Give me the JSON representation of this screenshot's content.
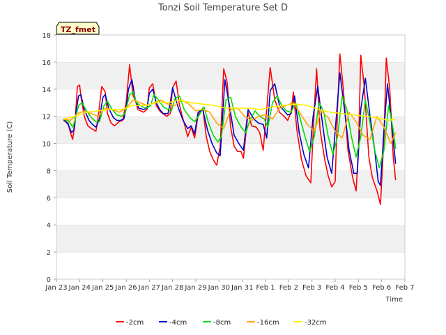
{
  "chart_data": {
    "type": "line",
    "title": "Tonzi Soil Temperature Set D",
    "xlabel": "Time",
    "ylabel": "Soil Temperature (C)",
    "badge": "TZ_fmet",
    "ylim": [
      0,
      18
    ],
    "yticks": [
      0,
      2,
      4,
      6,
      8,
      10,
      12,
      14,
      16,
      18
    ],
    "xlim": [
      0,
      15
    ],
    "xticks": [
      0,
      1,
      2,
      3,
      4,
      5,
      6,
      7,
      8,
      9,
      10,
      11,
      12,
      13,
      14,
      15
    ],
    "xtick_labels": [
      "Jan 23",
      "Jan 24",
      "Jan 25",
      "Jan 26",
      "Jan 27",
      "Jan 28",
      "Jan 29",
      "Jan 30",
      "Jan 31",
      "Feb 1",
      "Feb 2",
      "Feb 3",
      "Feb 4",
      "Feb 5",
      "Feb 6",
      "Feb 7"
    ],
    "grid": "horizontal bands",
    "legend_position": "bottom",
    "series": [
      {
        "name": "-2cm",
        "color": "#ff0000",
        "x": [
          0.3,
          0.5,
          0.6,
          0.7,
          0.8,
          0.9,
          1.0,
          1.05,
          1.2,
          1.35,
          1.5,
          1.7,
          1.8,
          1.95,
          2.1,
          2.2,
          2.35,
          2.5,
          2.7,
          2.85,
          3.0,
          3.15,
          3.3,
          3.4,
          3.5,
          3.75,
          3.9,
          4.0,
          4.15,
          4.3,
          4.4,
          4.5,
          4.75,
          4.9,
          5.0,
          5.15,
          5.3,
          5.4,
          5.5,
          5.65,
          5.8,
          5.95,
          6.1,
          6.3,
          6.45,
          6.6,
          6.75,
          6.9,
          7.05,
          7.2,
          7.35,
          7.5,
          7.65,
          7.8,
          7.95,
          8.05,
          8.25,
          8.4,
          8.6,
          8.75,
          8.9,
          9.05,
          9.2,
          9.4,
          9.6,
          9.8,
          9.95,
          10.1,
          10.2,
          10.35,
          10.55,
          10.75,
          10.95,
          11.1,
          11.2,
          11.35,
          11.55,
          11.7,
          11.85,
          12.0,
          12.1,
          12.2,
          12.35,
          12.55,
          12.75,
          12.9,
          13.0,
          13.1,
          13.25,
          13.45,
          13.6,
          13.8,
          13.95,
          14.1,
          14.2,
          14.35,
          14.5,
          14.6
        ],
        "values": [
          11.7,
          11.5,
          10.8,
          10.3,
          11.5,
          14.2,
          14.3,
          13.5,
          12.0,
          11.3,
          11.1,
          10.9,
          12.0,
          14.2,
          13.8,
          12.2,
          11.5,
          11.3,
          11.6,
          11.7,
          13.0,
          15.8,
          13.5,
          13.2,
          12.5,
          12.3,
          12.5,
          14.1,
          14.4,
          12.8,
          12.5,
          12.3,
          12.0,
          12.2,
          14.1,
          14.6,
          12.8,
          12.1,
          11.5,
          10.5,
          11.2,
          10.4,
          12.1,
          12.6,
          10.5,
          9.4,
          8.8,
          8.4,
          9.8,
          15.5,
          14.5,
          11.2,
          9.8,
          9.4,
          9.4,
          8.9,
          12.3,
          11.3,
          11.2,
          10.8,
          9.5,
          12.5,
          15.6,
          13.2,
          12.3,
          12.0,
          11.7,
          12.3,
          13.8,
          11.0,
          8.8,
          7.6,
          7.1,
          12.5,
          15.5,
          11.0,
          8.8,
          7.6,
          6.8,
          7.2,
          12.5,
          16.6,
          14.0,
          9.5,
          7.5,
          6.5,
          9.5,
          16.5,
          14.2,
          9.0,
          7.5,
          6.5,
          5.5,
          10.5,
          16.3,
          14.0,
          9.0,
          7.3
        ]
      },
      {
        "name": "-4cm",
        "color": "#0000cc",
        "x": [
          0.3,
          0.5,
          0.65,
          0.75,
          0.85,
          0.95,
          1.05,
          1.2,
          1.4,
          1.55,
          1.7,
          1.85,
          2.0,
          2.1,
          2.25,
          2.45,
          2.6,
          2.75,
          2.9,
          3.0,
          3.1,
          3.25,
          3.4,
          3.55,
          3.75,
          3.9,
          4.0,
          4.15,
          4.3,
          4.45,
          4.6,
          4.8,
          4.9,
          5.0,
          5.1,
          5.25,
          5.45,
          5.65,
          5.8,
          5.95,
          6.1,
          6.3,
          6.5,
          6.7,
          6.9,
          7.05,
          7.25,
          7.45,
          7.65,
          7.85,
          8.05,
          8.25,
          8.5,
          8.7,
          8.9,
          9.05,
          9.2,
          9.4,
          9.6,
          9.8,
          9.95,
          10.1,
          10.25,
          10.45,
          10.65,
          10.85,
          11.05,
          11.25,
          11.45,
          11.65,
          11.85,
          12.05,
          12.2,
          12.4,
          12.6,
          12.8,
          12.95,
          13.1,
          13.3,
          13.5,
          13.7,
          13.85,
          13.95,
          14.1,
          14.25,
          14.4,
          14.6
        ],
        "values": [
          11.8,
          11.4,
          10.8,
          11.0,
          12.4,
          13.5,
          13.6,
          12.5,
          11.7,
          11.4,
          11.2,
          11.8,
          13.4,
          13.6,
          12.6,
          11.9,
          11.7,
          11.7,
          11.8,
          12.6,
          14.0,
          14.7,
          13.2,
          12.6,
          12.5,
          12.6,
          13.7,
          14.0,
          13.0,
          12.5,
          12.2,
          12.2,
          13.0,
          14.1,
          13.5,
          12.6,
          11.7,
          11.1,
          11.3,
          10.7,
          12.3,
          12.5,
          11.0,
          10.0,
          9.3,
          9.1,
          14.7,
          12.8,
          10.6,
          10.0,
          9.5,
          12.5,
          11.8,
          11.5,
          11.4,
          10.4,
          13.9,
          14.4,
          12.8,
          12.4,
          12.1,
          12.2,
          13.5,
          10.8,
          9.2,
          8.2,
          12.0,
          14.2,
          11.5,
          9.0,
          7.8,
          12.0,
          15.2,
          12.5,
          9.5,
          7.8,
          7.8,
          12.5,
          14.8,
          12.0,
          9.5,
          7.2,
          6.9,
          11.0,
          14.4,
          12.0,
          8.5
        ]
      },
      {
        "name": "-8cm",
        "color": "#00dd00",
        "x": [
          0.3,
          0.55,
          0.7,
          0.8,
          0.95,
          1.1,
          1.3,
          1.5,
          1.7,
          1.85,
          2.05,
          2.2,
          2.4,
          2.6,
          2.8,
          2.95,
          3.15,
          3.3,
          3.45,
          3.7,
          3.9,
          4.05,
          4.2,
          4.4,
          4.6,
          4.8,
          4.95,
          5.1,
          5.3,
          5.5,
          5.75,
          5.95,
          6.15,
          6.35,
          6.55,
          6.75,
          6.95,
          7.1,
          7.3,
          7.5,
          7.7,
          7.95,
          8.15,
          8.35,
          8.55,
          8.75,
          8.95,
          9.1,
          9.3,
          9.5,
          9.7,
          9.9,
          10.1,
          10.3,
          10.5,
          10.7,
          10.9,
          11.1,
          11.3,
          11.5,
          11.7,
          11.9,
          12.1,
          12.3,
          12.5,
          12.7,
          12.9,
          13.1,
          13.3,
          13.5,
          13.7,
          13.9,
          14.1,
          14.3,
          14.5,
          14.6
        ],
        "values": [
          11.8,
          11.6,
          11.2,
          11.7,
          12.8,
          13.0,
          12.4,
          11.9,
          11.6,
          11.6,
          12.8,
          13.1,
          12.5,
          12.1,
          12.0,
          12.2,
          13.6,
          13.8,
          13.0,
          12.7,
          12.6,
          12.8,
          13.6,
          13.2,
          12.7,
          12.5,
          12.4,
          13.3,
          13.5,
          12.5,
          11.9,
          11.6,
          12.1,
          12.7,
          11.5,
          10.6,
          10.1,
          10.5,
          13.2,
          13.4,
          12.0,
          11.2,
          10.8,
          11.8,
          12.4,
          12.0,
          11.8,
          11.2,
          13.0,
          13.5,
          12.8,
          12.4,
          12.3,
          13.0,
          11.8,
          10.5,
          9.4,
          10.5,
          13.0,
          12.4,
          10.5,
          9.2,
          10.5,
          13.5,
          12.5,
          10.5,
          9.0,
          10.5,
          13.2,
          11.5,
          9.5,
          8.2,
          9.5,
          12.8,
          11.0,
          9.6
        ]
      },
      {
        "name": "-16cm",
        "color": "#ffa500",
        "x": [
          0.3,
          0.6,
          0.9,
          1.2,
          1.5,
          1.8,
          2.1,
          2.4,
          2.7,
          3.0,
          3.3,
          3.6,
          3.9,
          4.2,
          4.5,
          4.8,
          5.1,
          5.4,
          5.7,
          6.0,
          6.3,
          6.6,
          6.9,
          7.2,
          7.5,
          7.8,
          8.1,
          8.4,
          8.7,
          9.0,
          9.3,
          9.6,
          9.9,
          10.2,
          10.5,
          10.8,
          11.1,
          11.4,
          11.7,
          12.0,
          12.3,
          12.6,
          12.9,
          13.2,
          13.5,
          13.8,
          14.1,
          14.4,
          14.6
        ],
        "values": [
          11.8,
          11.7,
          12.2,
          12.4,
          12.2,
          12.0,
          12.6,
          12.5,
          12.3,
          12.6,
          13.2,
          13.0,
          12.8,
          13.0,
          13.2,
          12.9,
          12.8,
          13.2,
          12.9,
          12.4,
          12.5,
          12.3,
          11.5,
          11.1,
          12.5,
          12.6,
          12.0,
          11.7,
          12.0,
          12.1,
          11.8,
          12.6,
          12.8,
          13.0,
          12.2,
          11.4,
          10.9,
          12.4,
          11.9,
          10.9,
          10.4,
          12.3,
          11.6,
          10.6,
          10.3,
          12.0,
          11.2,
          10.0,
          10.8
        ]
      },
      {
        "name": "-32cm",
        "color": "#ffee00",
        "x": [
          0.3,
          0.8,
          1.3,
          1.8,
          2.3,
          2.8,
          3.3,
          3.8,
          4.3,
          4.8,
          5.3,
          5.8,
          6.3,
          6.8,
          7.3,
          7.8,
          8.3,
          8.8,
          9.3,
          9.8,
          10.3,
          10.8,
          11.3,
          11.8,
          12.3,
          12.8,
          13.3,
          13.8,
          14.3,
          14.6
        ],
        "values": [
          11.8,
          12.0,
          12.3,
          12.4,
          12.5,
          12.5,
          12.8,
          12.8,
          13.0,
          13.0,
          13.2,
          13.0,
          12.9,
          12.8,
          12.6,
          12.6,
          12.6,
          12.5,
          12.7,
          12.8,
          12.9,
          12.8,
          12.5,
          12.3,
          12.2,
          12.1,
          12.0,
          11.9,
          11.7,
          11.8
        ]
      }
    ]
  }
}
